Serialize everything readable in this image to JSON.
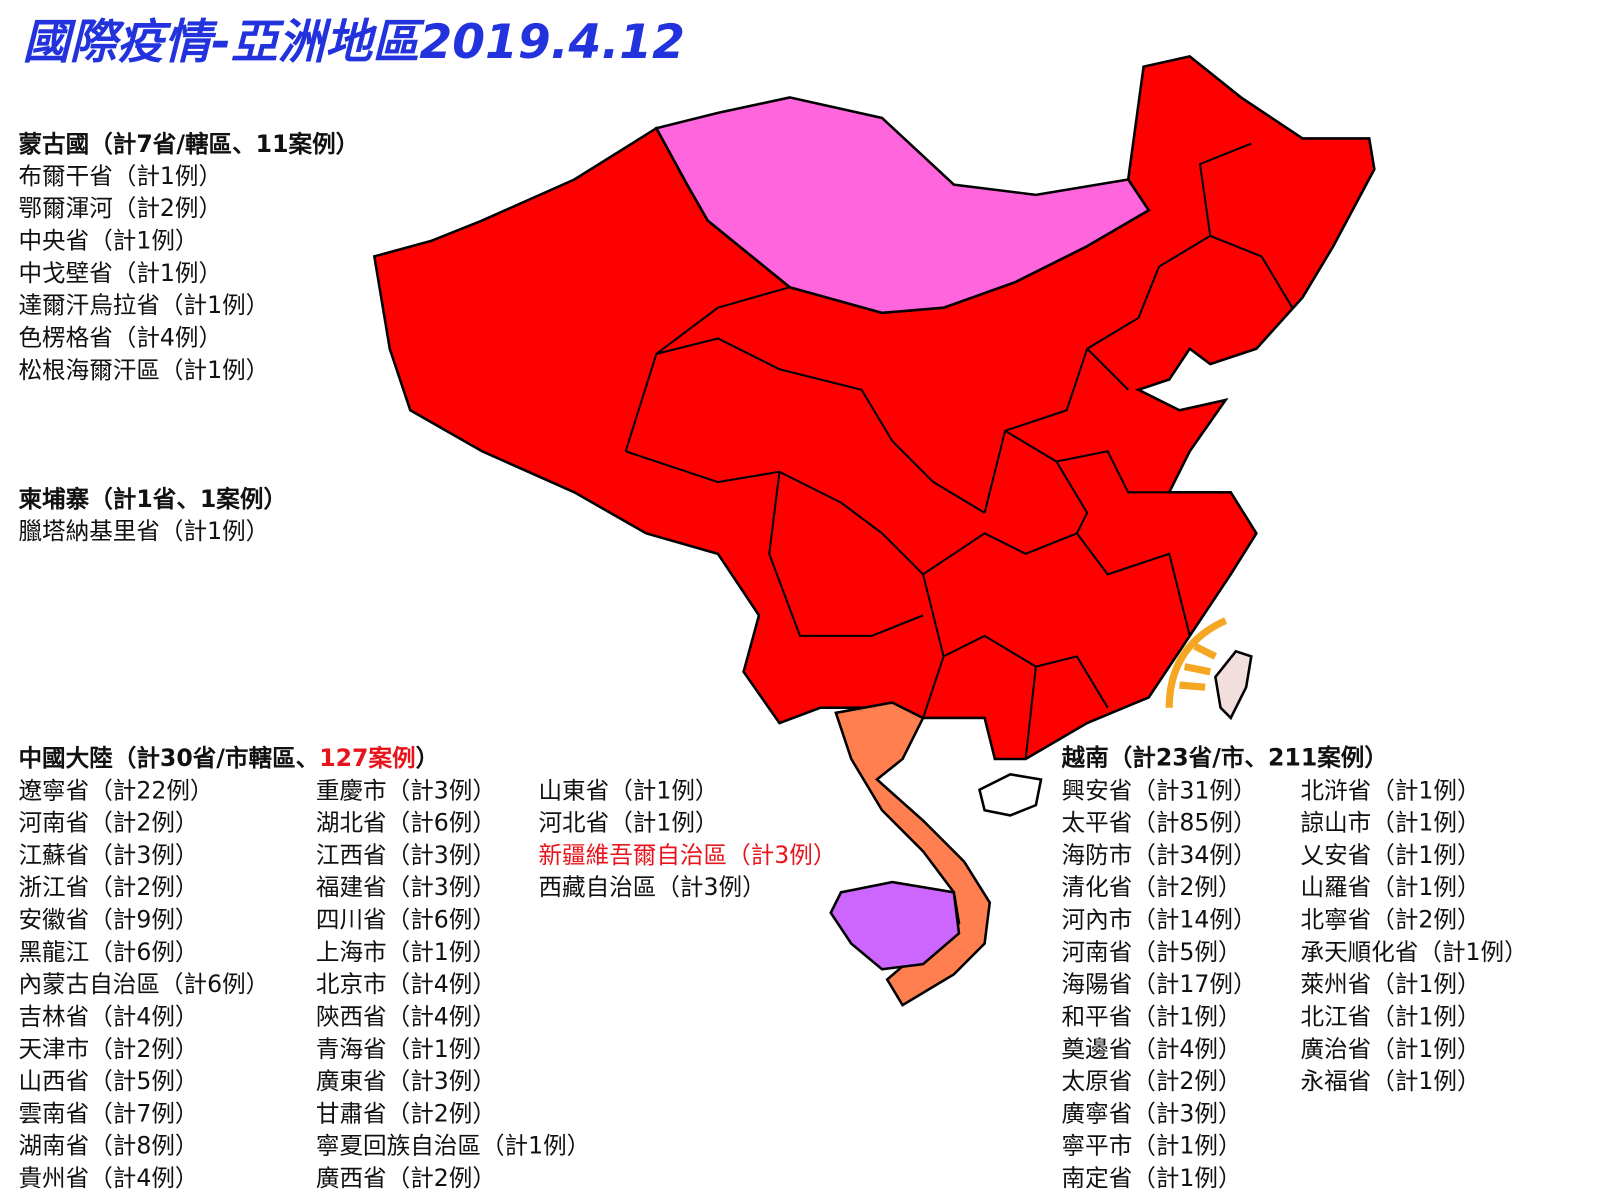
{
  "title": "國際疫情-亞洲地區2019.4.12",
  "title_color": "#2233dd",
  "mongolia": {
    "heading": "蒙古國（計7省/轄區、11案例）",
    "items": [
      "布爾干省（計1例）",
      "鄂爾渾河（計2例）",
      "中央省（計1例）",
      "中戈壁省（計1例）",
      "達爾汗烏拉省（計1例）",
      "色楞格省（計4例）",
      "松根海爾汗區（計1例）"
    ]
  },
  "cambodia": {
    "heading": "柬埔寨（計1省、1案例）",
    "items": [
      "臘塔納基里省（計1例）"
    ]
  },
  "china": {
    "heading_start": "中國大陸（計30省/市轄區、",
    "heading_highlight": {
      "text": "127案例",
      "color": "#e8141c"
    },
    "heading_end": "）",
    "columns": [
      [
        "遼寧省（計22例）",
        "河南省（計2例）",
        "江蘇省（計3例）",
        "浙江省（計2例）",
        "安徽省（計9例）",
        "黑龍江（計6例）",
        "內蒙古自治區（計6例）",
        "吉林省（計4例）",
        "天津市（計2例）",
        "山西省（計5例）",
        "雲南省（計7例）",
        "湖南省（計8例）",
        "貴州省（計4例）"
      ],
      [
        "重慶市（計3例）",
        "湖北省（計6例）",
        "江西省（計3例）",
        "福建省（計3例）",
        "四川省（計6例）",
        "上海市（計1例）",
        "北京市（計4例）",
        "陝西省（計4例）",
        "青海省（計1例）",
        "廣東省（計3例）",
        "甘肅省（計2例）",
        "寧夏回族自治區（計1例）",
        "廣西省（計2例）"
      ],
      [
        "山東省（計1例）",
        "河北省（計1例）",
        {
          "text": "新疆維吾爾自治區（計3例）",
          "color": "#e8141c"
        },
        "西藏自治區（計3例）"
      ]
    ]
  },
  "vietnam": {
    "heading": "越南（計23省/市、211案例）",
    "columns": [
      [
        "興安省（計31例）",
        "太平省（計85例）",
        "海防市（計34例）",
        "清化省（計2例）",
        "河內市（計14例）",
        "河南省（計5例）",
        "海陽省（計17例）",
        "和平省（計1例）",
        "奠邊省（計4例）",
        "太原省（計2例）",
        "廣寧省（計3例）",
        "寧平市（計1例）",
        "南定省（計1例）"
      ],
      [
        "北浒省（計1例）",
        "諒山市（計1例）",
        "乂安省（計1例）",
        "山羅省（計1例）",
        "北寧省（計2例）",
        "承天順化省（計1例）",
        "萊州省（計1例）",
        "北江省（計1例）",
        "廣治省（計1例）",
        "永福省（計1例）"
      ]
    ]
  }
}
